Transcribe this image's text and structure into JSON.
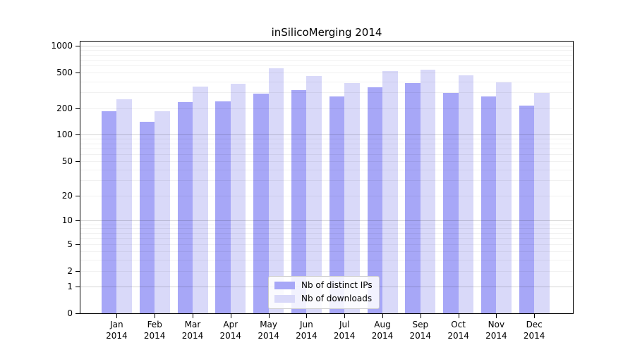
{
  "chart_data": {
    "type": "bar",
    "title": "inSilicoMerging 2014",
    "x_months": [
      "Jan",
      "Feb",
      "Mar",
      "Apr",
      "May",
      "Jun",
      "Jul",
      "Aug",
      "Sep",
      "Oct",
      "Nov",
      "Dec"
    ],
    "x_year": "2014",
    "series": [
      {
        "name": "Nb of distinct IPs",
        "color": "#a7a7f7",
        "values": [
          185,
          140,
          235,
          240,
          290,
          320,
          270,
          345,
          385,
          295,
          270,
          215
        ]
      },
      {
        "name": "Nb of downloads",
        "color": "#d9d9f9",
        "values": [
          250,
          185,
          350,
          375,
          560,
          460,
          385,
          520,
          545,
          465,
          390,
          295
        ]
      }
    ],
    "ylabel": "",
    "xlabel": "",
    "y_scale": "log(value+1)",
    "y_ticks": [
      1000,
      500,
      200,
      100,
      50,
      20,
      10,
      5,
      2,
      1,
      0
    ],
    "ylim": [
      0,
      1130
    ],
    "grid": "both",
    "legend_position": "lower center"
  },
  "colors": {
    "spine": "#000000",
    "major_grid": "rgba(0,0,0,0.16)",
    "minor_grid": "rgba(0,0,0,0.055)",
    "text": "#000000",
    "background": "#ffffff"
  }
}
